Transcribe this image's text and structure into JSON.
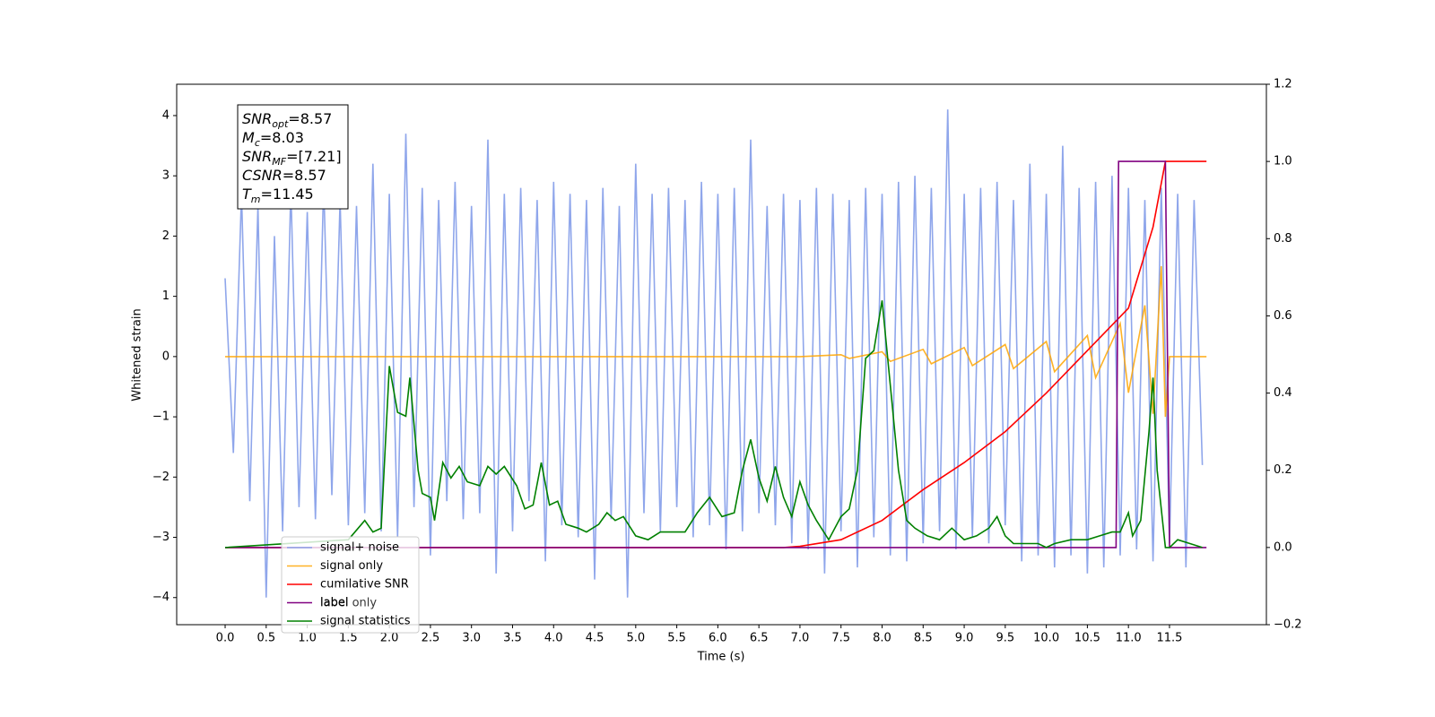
{
  "chart_data": {
    "type": "line",
    "xlabel": "Time (s)",
    "ylabel": "Whitened strain",
    "xlim": [
      -0.59,
      12.68
    ],
    "ylim": [
      -4.45,
      4.52
    ],
    "y2lim": [
      -0.2,
      1.2
    ],
    "xticks": [
      {
        "value": 0,
        "label": "0.0"
      },
      0.5,
      {
        "value": 1,
        "label": "1.0"
      },
      1.5,
      {
        "value": 2,
        "label": "2.0"
      },
      2.5,
      {
        "value": 3,
        "label": "3.0"
      },
      3.5,
      {
        "value": 4,
        "label": "4.0"
      },
      4.5,
      {
        "value": 5,
        "label": "5.0"
      },
      5.5,
      {
        "value": 6,
        "label": "6.0"
      },
      6.5,
      {
        "value": 7,
        "label": "7.0"
      },
      7.5,
      {
        "value": 8,
        "label": "8.0"
      },
      8.5,
      {
        "value": 9,
        "label": "9.0"
      },
      9.5,
      {
        "value": 10,
        "label": "10.0"
      },
      10.5,
      {
        "value": 11,
        "label": "11.0"
      },
      11.5
    ],
    "yticks": [
      {
        "value": -4,
        "label": "−4"
      },
      {
        "value": -3,
        "label": "−3"
      },
      {
        "value": -2,
        "label": "−2"
      },
      {
        "value": -1,
        "label": "−1"
      },
      0,
      1,
      2,
      3,
      4
    ],
    "y2ticks": [
      {
        "value": -0.2,
        "label": "−0.2"
      },
      {
        "value": 0,
        "label": "0.0"
      },
      0.2,
      0.4,
      0.6,
      0.8,
      {
        "value": 1,
        "label": "1.0"
      },
      1.2
    ],
    "stats_box": [
      {
        "base": "SNR",
        "sub": "opt",
        "text": "=8.57"
      },
      {
        "base": "M",
        "sub": "c",
        "text": "=8.03"
      },
      {
        "base": "SNR",
        "sub": "MF",
        "text": "=[7.21]"
      },
      {
        "base": "CSNR",
        "sub": "",
        "text": "=8.57"
      },
      {
        "base": "T",
        "sub": "m",
        "text": "=11.45"
      }
    ],
    "legend_overlay_text": "label only",
    "series": [
      {
        "name": "signal+ noise",
        "color": "#7b96e8",
        "axis": "y",
        "x": [
          0,
          0.1,
          0.2,
          0.3,
          0.4,
          0.5,
          0.6,
          0.7,
          0.8,
          0.9,
          1,
          1.1,
          1.2,
          1.3,
          1.4,
          1.5,
          1.6,
          1.7,
          1.8,
          1.9,
          2,
          2.1,
          2.2,
          2.3,
          2.4,
          2.5,
          2.6,
          2.7,
          2.8,
          2.9,
          3,
          3.1,
          3.2,
          3.3,
          3.4,
          3.5,
          3.6,
          3.7,
          3.8,
          3.9,
          4,
          4.1,
          4.2,
          4.3,
          4.4,
          4.5,
          4.6,
          4.7,
          4.8,
          4.9,
          5,
          5.1,
          5.2,
          5.3,
          5.4,
          5.5,
          5.6,
          5.7,
          5.8,
          5.9,
          6,
          6.1,
          6.2,
          6.3,
          6.4,
          6.5,
          6.6,
          6.7,
          6.8,
          6.9,
          7,
          7.1,
          7.2,
          7.3,
          7.4,
          7.5,
          7.6,
          7.7,
          7.8,
          7.9,
          8,
          8.1,
          8.2,
          8.3,
          8.4,
          8.5,
          8.6,
          8.7,
          8.8,
          8.9,
          9,
          9.1,
          9.2,
          9.3,
          9.4,
          9.5,
          9.6,
          9.7,
          9.8,
          9.9,
          10,
          10.1,
          10.2,
          10.3,
          10.4,
          10.5,
          10.6,
          10.7,
          10.8,
          10.9,
          11,
          11.1,
          11.2,
          11.3,
          11.4,
          11.5,
          11.6,
          11.7,
          11.8,
          11.9
        ],
        "values": [
          1.3,
          -1.6,
          2.7,
          -2.4,
          2.5,
          -4.0,
          2.0,
          -2.9,
          2.8,
          -2.5,
          2.4,
          -2.7,
          2.9,
          -2.3,
          2.6,
          -2.8,
          2.5,
          -2.6,
          3.2,
          -2.9,
          2.7,
          -3.0,
          3.7,
          -2.5,
          2.8,
          -3.3,
          2.6,
          -2.4,
          2.9,
          -2.7,
          2.5,
          -2.6,
          3.6,
          -3.6,
          2.7,
          -2.9,
          2.8,
          -2.4,
          2.6,
          -3.4,
          2.9,
          -2.8,
          2.7,
          -3.0,
          2.6,
          -3.7,
          2.8,
          -2.7,
          2.5,
          -4.0,
          3.2,
          -2.6,
          2.7,
          -2.9,
          2.8,
          -2.5,
          2.6,
          -3.0,
          2.9,
          -2.8,
          2.7,
          -3.2,
          2.8,
          -2.9,
          3.6,
          -2.6,
          2.5,
          -2.8,
          2.7,
          -3.1,
          2.6,
          -3.2,
          2.8,
          -3.6,
          2.7,
          -2.9,
          2.6,
          -3.5,
          2.8,
          -3.0,
          2.7,
          -3.3,
          2.9,
          -3.4,
          3.0,
          -3.1,
          2.8,
          -2.9,
          4.1,
          -3.2,
          2.7,
          -3.0,
          2.8,
          -3.1,
          2.9,
          -2.8,
          2.6,
          -3.4,
          3.2,
          -3.3,
          2.7,
          -3.5,
          3.5,
          -3.3,
          2.8,
          -3.6,
          2.9,
          -3.5,
          3.0,
          -3.3,
          2.8,
          -3.2,
          2.6,
          -3.4,
          2.8,
          -3.1,
          2.7,
          -3.5,
          2.6,
          -1.8
        ]
      },
      {
        "name": "signal only",
        "color": "#ffa500",
        "axis": "y",
        "x": [
          0,
          7,
          7.5,
          7.6,
          8,
          8.1,
          8.5,
          8.6,
          9,
          9.1,
          9.5,
          9.6,
          10,
          10.1,
          10.5,
          10.6,
          10.9,
          11,
          11.2,
          11.3,
          11.4,
          11.45,
          11.5,
          11.95
        ],
        "values": [
          0,
          0,
          0.03,
          -0.03,
          0.08,
          -0.08,
          0.12,
          -0.12,
          0.15,
          -0.15,
          0.2,
          -0.2,
          0.25,
          -0.25,
          0.35,
          -0.35,
          0.55,
          -0.6,
          0.85,
          -0.95,
          1.5,
          -1.0,
          0,
          0
        ]
      },
      {
        "name": "cumilative SNR",
        "color": "#ff0000",
        "axis": "y2",
        "x": [
          0,
          6.8,
          7,
          7.5,
          8,
          8.5,
          9,
          9.5,
          10,
          10.5,
          11,
          11.3,
          11.45,
          11.95
        ],
        "values": [
          0,
          0,
          0.003,
          0.02,
          0.07,
          0.15,
          0.22,
          0.3,
          0.4,
          0.51,
          0.62,
          0.83,
          1.0,
          1.0
        ]
      },
      {
        "name": "label",
        "color": "#800080",
        "axis": "y2",
        "x": [
          0,
          10.85,
          10.88,
          11.45,
          11.5,
          11.95
        ],
        "values": [
          0,
          0,
          1,
          1,
          0,
          0
        ]
      },
      {
        "name": "signal statistics",
        "color": "#008000",
        "axis": "y2",
        "x": [
          0,
          1.5,
          1.7,
          1.8,
          1.9,
          2.0,
          2.1,
          2.2,
          2.25,
          2.35,
          2.4,
          2.5,
          2.55,
          2.65,
          2.75,
          2.85,
          2.95,
          3.1,
          3.2,
          3.3,
          3.4,
          3.55,
          3.65,
          3.75,
          3.85,
          3.95,
          4.05,
          4.15,
          4.3,
          4.4,
          4.55,
          4.65,
          4.75,
          4.85,
          5.0,
          5.15,
          5.3,
          5.45,
          5.6,
          5.75,
          5.9,
          6.05,
          6.2,
          6.3,
          6.4,
          6.5,
          6.6,
          6.7,
          6.8,
          6.9,
          7.0,
          7.1,
          7.2,
          7.35,
          7.5,
          7.6,
          7.7,
          7.8,
          7.9,
          8.0,
          8.1,
          8.2,
          8.3,
          8.4,
          8.55,
          8.7,
          8.85,
          9.0,
          9.15,
          9.3,
          9.4,
          9.5,
          9.6,
          9.75,
          9.9,
          10.0,
          10.1,
          10.3,
          10.5,
          10.65,
          10.8,
          10.9,
          11.0,
          11.05,
          11.15,
          11.25,
          11.3,
          11.35,
          11.45,
          11.5,
          11.6,
          11.75,
          11.9
        ],
        "values": [
          0,
          0.02,
          0.07,
          0.04,
          0.05,
          0.47,
          0.35,
          0.34,
          0.44,
          0.2,
          0.14,
          0.13,
          0.07,
          0.22,
          0.18,
          0.21,
          0.17,
          0.16,
          0.21,
          0.19,
          0.21,
          0.16,
          0.1,
          0.11,
          0.22,
          0.11,
          0.12,
          0.06,
          0.05,
          0.04,
          0.06,
          0.09,
          0.07,
          0.08,
          0.03,
          0.02,
          0.04,
          0.04,
          0.04,
          0.09,
          0.13,
          0.08,
          0.09,
          0.2,
          0.28,
          0.18,
          0.12,
          0.21,
          0.13,
          0.08,
          0.17,
          0.11,
          0.07,
          0.02,
          0.08,
          0.1,
          0.2,
          0.49,
          0.51,
          0.64,
          0.42,
          0.2,
          0.07,
          0.05,
          0.03,
          0.02,
          0.05,
          0.02,
          0.03,
          0.05,
          0.08,
          0.03,
          0.01,
          0.01,
          0.01,
          0,
          0.01,
          0.02,
          0.02,
          0.03,
          0.04,
          0.04,
          0.09,
          0.03,
          0.07,
          0.3,
          0.44,
          0.2,
          0,
          0,
          0.02,
          0.01,
          0
        ]
      }
    ]
  }
}
